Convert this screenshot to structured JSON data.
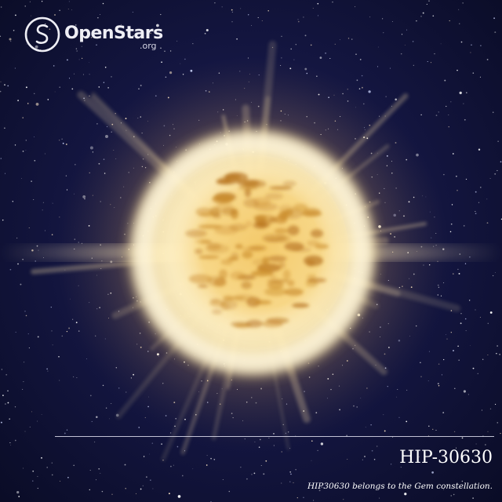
{
  "brand": {
    "name": "OpenStars",
    "suffix": ".org",
    "icon": "openstars-logo-icon"
  },
  "star": {
    "name": "HIP-30630",
    "caption": "HIP30630 belongs to the Gem constellation."
  },
  "colors": {
    "space_background": "#151744",
    "star_core": "#fff6d8",
    "star_glow": "#ffd77a",
    "star_surface": "#e8b64a",
    "text": "#ffffff"
  }
}
